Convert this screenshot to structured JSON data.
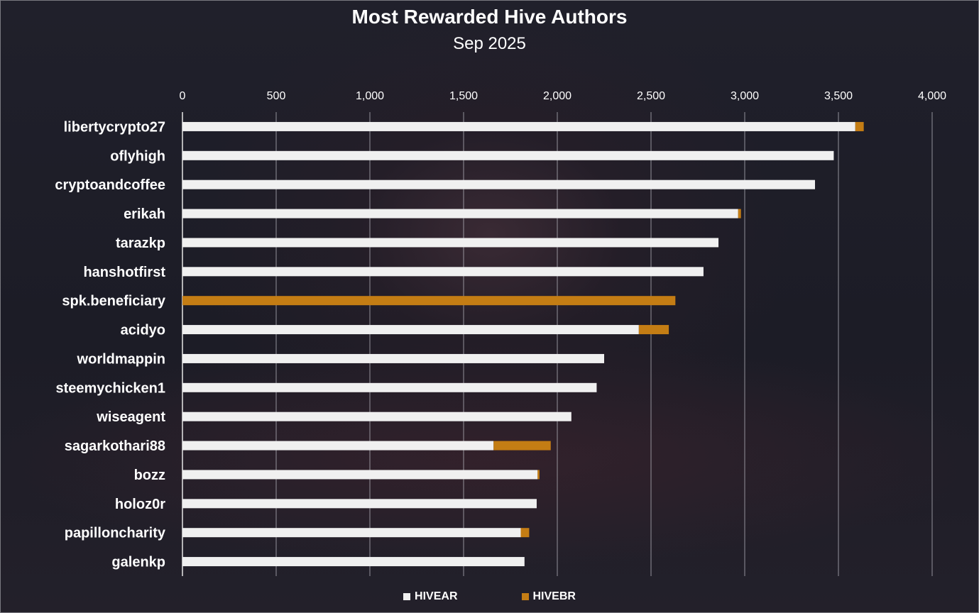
{
  "chart_data": {
    "type": "bar",
    "orientation": "horizontal",
    "stacked": true,
    "title": "Most Rewarded Hive Authors",
    "subtitle": "Sep 2025",
    "xlim": [
      0,
      4000
    ],
    "xticks": [
      "0",
      "500",
      "1,000",
      "1,500",
      "2,000",
      "2,500",
      "3,000",
      "3,500",
      "4,000"
    ],
    "xtick_values": [
      0,
      500,
      1000,
      1500,
      2000,
      2500,
      3000,
      3500,
      4000
    ],
    "grid": true,
    "legend_position": "bottom",
    "categories": [
      "libertycrypto27",
      "oflyhigh",
      "cryptoandcoffee",
      "erikah",
      "tarazkp",
      "hanshotfirst",
      "spk.beneficiary",
      "acidyo",
      "worldmappin",
      "steemychicken1",
      "wiseagent",
      "sagarkothari88",
      "bozz",
      "holoz0r",
      "papilloncharity",
      "galenkp"
    ],
    "series": [
      {
        "name": "HIVEAR",
        "color": "#f0f0f0",
        "values": [
          3590,
          3475,
          3375,
          2965,
          2860,
          2780,
          0,
          2435,
          2250,
          2210,
          2075,
          1660,
          1895,
          1890,
          1805,
          1825
        ]
      },
      {
        "name": "HIVEBR",
        "color": "#c47d14",
        "values": [
          45,
          0,
          0,
          15,
          0,
          0,
          2630,
          160,
          0,
          0,
          0,
          305,
          10,
          0,
          45,
          0
        ]
      }
    ]
  }
}
